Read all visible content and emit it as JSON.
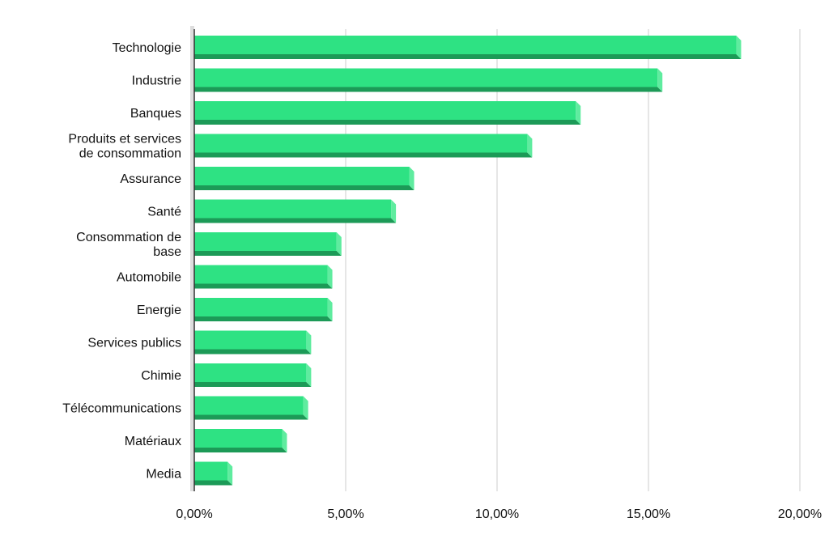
{
  "chart_data": {
    "type": "bar",
    "orientation": "horizontal",
    "title": "",
    "xlabel": "",
    "ylabel": "",
    "categories": [
      [
        "Technologie"
      ],
      [
        "Industrie"
      ],
      [
        "Banques"
      ],
      [
        "Produits et services",
        "de consommation"
      ],
      [
        "Assurance"
      ],
      [
        "Santé"
      ],
      [
        "Consommation de",
        "base"
      ],
      [
        "Automobile"
      ],
      [
        "Energie"
      ],
      [
        "Services publics"
      ],
      [
        "Chimie"
      ],
      [
        "Télécommunications"
      ],
      [
        "Matériaux"
      ],
      [
        "Media"
      ]
    ],
    "values": [
      17.9,
      15.3,
      12.6,
      11.0,
      7.1,
      6.5,
      4.7,
      4.4,
      4.4,
      3.7,
      3.7,
      3.6,
      2.9,
      1.1
    ],
    "xlim": [
      0,
      20
    ],
    "xticks": [
      0,
      5,
      10,
      15,
      20
    ],
    "xtick_labels": [
      "0,00%",
      "5,00%",
      "10,00%",
      "15,00%",
      "20,00%"
    ],
    "grid": true,
    "legend": false,
    "colors": {
      "bar_front": "#2ee283",
      "bar_bottom": "#1c9a57",
      "bar_side": "#5fec9f",
      "grid": "#cccccc",
      "axis": "#333333",
      "floor": "#dddddd"
    }
  }
}
